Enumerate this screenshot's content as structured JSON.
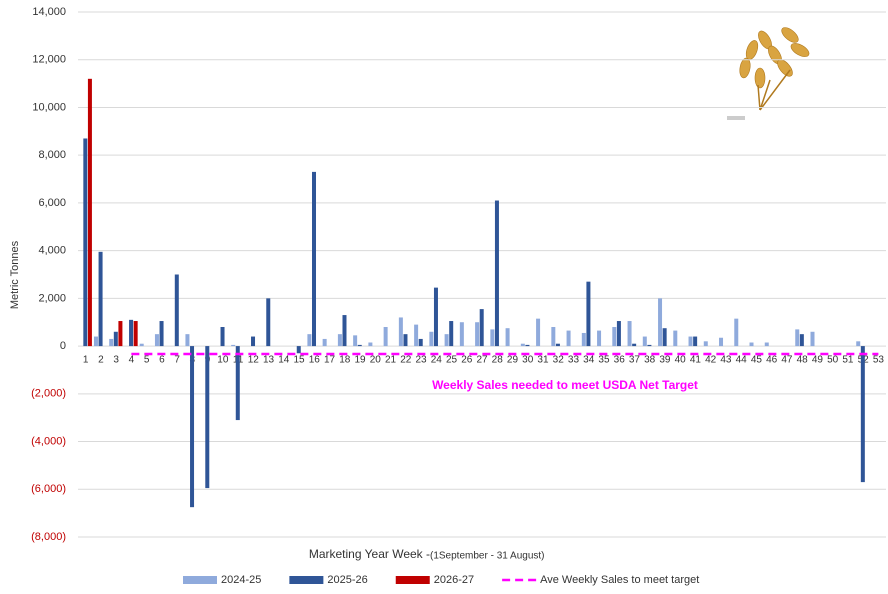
{
  "chart_data": {
    "type": "bar",
    "y_label": "Metric Tonnes",
    "x_label": "Marketing Year Week - ",
    "x_label_detail": "(1September - 31 August)",
    "annotation": "Weekly Sales needed to meet USDA Net Target",
    "annotation_color": "#ff00ff",
    "negative_tick_color": "#c00000",
    "grid": true,
    "legend": "bottom",
    "ylim": [
      -8000,
      14000
    ],
    "yticks": [
      {
        "value": -8000,
        "label": "(8,000)"
      },
      {
        "value": -6000,
        "label": "(6,000)"
      },
      {
        "value": -4000,
        "label": "(4,000)"
      },
      {
        "value": -2000,
        "label": "(2,000)"
      },
      0,
      {
        "value": 2000,
        "label": "2,000"
      },
      {
        "value": 4000,
        "label": "4,000"
      },
      {
        "value": 6000,
        "label": "6,000"
      },
      {
        "value": 8000,
        "label": "8,000"
      },
      {
        "value": 10000,
        "label": "10,000"
      },
      {
        "value": 12000,
        "label": "12,000"
      },
      {
        "value": 14000,
        "label": "14,000"
      }
    ],
    "categories": [
      "1",
      "2",
      "3",
      "4",
      "5",
      "6",
      "7",
      "8",
      "9",
      "10",
      "11",
      "12",
      "13",
      "14",
      "15",
      "16",
      "17",
      "18",
      "19",
      "20",
      "21",
      "22",
      "23",
      "24",
      "25",
      "26",
      "27",
      "28",
      "29",
      "30",
      "31",
      "32",
      "33",
      "34",
      "35",
      "36",
      "37",
      "38",
      "39",
      "40",
      "41",
      "42",
      "43",
      "44",
      "45",
      "46",
      "47",
      "48",
      "49",
      "50",
      "51",
      "52",
      "53"
    ],
    "series": [
      {
        "name": "2024-25",
        "type": "bar",
        "color": "#8faadc",
        "values": [
          0,
          400,
          300,
          0,
          100,
          500,
          0,
          500,
          0,
          0,
          50,
          0,
          0,
          0,
          0,
          500,
          300,
          500,
          450,
          150,
          800,
          1200,
          900,
          600,
          500,
          1000,
          1000,
          700,
          750,
          100,
          1150,
          800,
          650,
          550,
          650,
          800,
          1050,
          400,
          2000,
          650,
          400,
          200,
          350,
          1150,
          150,
          150,
          0,
          700,
          600,
          0,
          0,
          200,
          0
        ]
      },
      {
        "name": "2025-26",
        "type": "bar",
        "color": "#2f5597",
        "values": [
          8700,
          3950,
          600,
          1100,
          0,
          1050,
          3000,
          -6750,
          -5950,
          800,
          -3100,
          400,
          2000,
          0,
          -300,
          7300,
          0,
          1300,
          50,
          0,
          0,
          500,
          300,
          2450,
          1050,
          0,
          1550,
          6100,
          0,
          50,
          0,
          100,
          0,
          2700,
          0,
          1050,
          100,
          50,
          750,
          0,
          400,
          0,
          0,
          0,
          0,
          0,
          0,
          500,
          0,
          0,
          0,
          -5700,
          0
        ]
      },
      {
        "name": "2026-27",
        "type": "bar",
        "color": "#c00000",
        "values": [
          11200,
          0,
          1050,
          1050,
          null,
          null,
          null,
          null,
          null,
          null,
          null,
          null,
          null,
          null,
          null,
          null,
          null,
          null,
          null,
          null,
          null,
          null,
          null,
          null,
          null,
          null,
          null,
          null,
          null,
          null,
          null,
          null,
          null,
          null,
          null,
          null,
          null,
          null,
          null,
          null,
          null,
          null,
          null,
          null,
          null,
          null,
          null,
          null,
          null,
          null,
          null,
          null,
          null
        ]
      },
      {
        "name": "Ave Weekly Sales to meet target",
        "type": "line",
        "color": "#ff00ff",
        "values": [
          null,
          null,
          null,
          -330,
          -330,
          -330,
          -330,
          -330,
          -330,
          -330,
          -330,
          -330,
          -330,
          -330,
          -330,
          -330,
          -330,
          -330,
          -330,
          -330,
          -330,
          -330,
          -330,
          -330,
          -330,
          -330,
          -330,
          -330,
          -330,
          -330,
          -330,
          -330,
          -330,
          -330,
          -330,
          -330,
          -330,
          -330,
          -330,
          -330,
          -330,
          -330,
          -330,
          -330,
          -330,
          -330,
          -330,
          -330,
          -330,
          -330,
          -330,
          -330,
          -330
        ]
      }
    ]
  }
}
